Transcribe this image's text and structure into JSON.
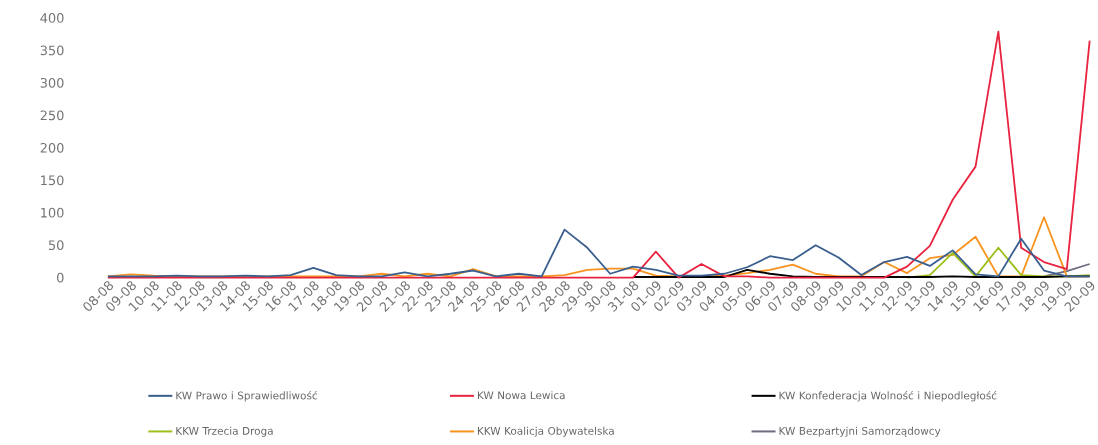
{
  "chart_data": {
    "type": "line",
    "categories": [
      "08-08",
      "09-08",
      "10-08",
      "11-08",
      "12-08",
      "13-08",
      "14-08",
      "15-08",
      "16-08",
      "17-08",
      "18-08",
      "19-08",
      "20-08",
      "21-08",
      "22-08",
      "23-08",
      "24-08",
      "25-08",
      "26-08",
      "27-08",
      "28-08",
      "29-08",
      "30-08",
      "31-08",
      "01-09",
      "02-09",
      "03-09",
      "04-09",
      "05-09",
      "06-09",
      "07-09",
      "08-09",
      "09-09",
      "10-09",
      "11-09",
      "12-09",
      "13-09",
      "14-09",
      "15-09",
      "16-09",
      "17-09",
      "18-09",
      "19-09",
      "20-09"
    ],
    "series": [
      {
        "name": "KW Prawo i Sprawiedliwość",
        "color": "#3a5f8f",
        "values": [
          2,
          2,
          2,
          3,
          2,
          2,
          3,
          2,
          4,
          15,
          4,
          2,
          2,
          8,
          2,
          6,
          11,
          2,
          6,
          2,
          74,
          46,
          6,
          17,
          12,
          3,
          3,
          6,
          16,
          33,
          27,
          50,
          31,
          4,
          24,
          32,
          18,
          42,
          5,
          2,
          60,
          11,
          2,
          2
        ]
      },
      {
        "name": "KW Nowa Lewica",
        "color": "#e8233f",
        "values": [
          0,
          0,
          0,
          0,
          0,
          0,
          0,
          0,
          0,
          0,
          0,
          0,
          0,
          0,
          0,
          0,
          0,
          0,
          0,
          0,
          0,
          0,
          0,
          0,
          40,
          0,
          21,
          2,
          2,
          0,
          0,
          0,
          0,
          0,
          0,
          17,
          49,
          120,
          171,
          379,
          46,
          24,
          13,
          365
        ]
      },
      {
        "name": "KW Konfederacja Wolność i Niepodległość",
        "color": "#000000",
        "values": [
          null,
          null,
          null,
          null,
          null,
          null,
          null,
          null,
          null,
          null,
          null,
          null,
          null,
          null,
          null,
          null,
          null,
          null,
          null,
          null,
          null,
          null,
          null,
          1,
          1,
          1,
          1,
          1,
          12,
          6,
          2,
          1,
          1,
          1,
          1,
          1,
          1,
          2,
          1,
          1,
          1,
          1,
          2,
          2
        ]
      },
      {
        "name": "KKW Trzecia Droga",
        "color": "#9cbf1a",
        "values": [
          null,
          null,
          null,
          null,
          null,
          null,
          null,
          null,
          null,
          null,
          null,
          null,
          null,
          null,
          null,
          null,
          null,
          null,
          null,
          null,
          null,
          null,
          null,
          null,
          null,
          null,
          null,
          null,
          null,
          null,
          null,
          null,
          null,
          null,
          null,
          0,
          4,
          38,
          2,
          46,
          4,
          2,
          2,
          4
        ]
      },
      {
        "name": "KKW Koalicja Obywatelska",
        "color": "#f7931e",
        "values": [
          2,
          5,
          3,
          2,
          2,
          2,
          2,
          2,
          2,
          2,
          2,
          2,
          6,
          2,
          6,
          2,
          13,
          2,
          2,
          2,
          4,
          12,
          14,
          14,
          3,
          2,
          2,
          3,
          7,
          12,
          20,
          6,
          2,
          2,
          24,
          7,
          30,
          35,
          63,
          2,
          2,
          93,
          2,
          2
        ]
      },
      {
        "name": "KW Bezpartyjni Samorządowcy",
        "color": "#6e6a80",
        "values": [
          null,
          null,
          null,
          null,
          null,
          null,
          null,
          null,
          null,
          null,
          null,
          null,
          null,
          null,
          null,
          null,
          null,
          null,
          null,
          null,
          null,
          null,
          null,
          null,
          null,
          null,
          null,
          null,
          null,
          null,
          null,
          null,
          null,
          null,
          null,
          null,
          null,
          null,
          null,
          null,
          null,
          2,
          10,
          21
        ]
      }
    ],
    "ylim": [
      0,
      400
    ],
    "yticks": [
      0,
      50,
      100,
      150,
      200,
      250,
      300,
      350,
      400
    ],
    "grid": false,
    "legend": "bottom",
    "marker": "none",
    "line_style": "solid"
  }
}
